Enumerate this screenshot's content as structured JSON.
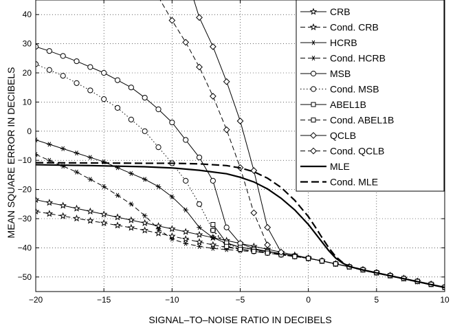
{
  "chart_data": {
    "type": "line",
    "title": "",
    "xlabel": "SIGNAL–TO–NOISE RATIO IN DECIBELS",
    "ylabel": "MEAN SQUARE ERROR IN DECIBELS",
    "xlim": [
      -20,
      10
    ],
    "ylim": [
      -55,
      45
    ],
    "xticks": [
      -20,
      -15,
      -10,
      -5,
      0,
      5,
      10
    ],
    "yticks": [
      -50,
      -40,
      -30,
      -20,
      -10,
      0,
      10,
      20,
      30,
      40
    ],
    "xtick_labels": [
      "−20",
      "−15",
      "−10",
      "−5",
      "0",
      "5",
      "10"
    ],
    "ytick_labels": [
      "−50",
      "−40",
      "−30",
      "−20",
      "−10",
      "0",
      "10",
      "20",
      "30",
      "40"
    ],
    "grid": true,
    "legend_position": "top-right",
    "series": [
      {
        "name": "CRB",
        "color": "#000000",
        "dash": "solid",
        "marker": "star",
        "x": [
          -20,
          -19,
          -18,
          -17,
          -16,
          -15,
          -14,
          -13,
          -12,
          -11,
          -10,
          -9,
          -8,
          -7,
          -6,
          -5,
          -4,
          -3,
          -2,
          -1,
          0,
          1,
          2,
          3,
          4,
          5,
          6,
          7,
          8,
          9,
          10
        ],
        "y": [
          -23.5,
          -24.5,
          -25.5,
          -26.5,
          -27.5,
          -28.5,
          -29.5,
          -30.5,
          -31.5,
          -32.5,
          -33.5,
          -34.5,
          -35.5,
          -36.5,
          -37.5,
          -38.5,
          -39.5,
          -40.5,
          -41.5,
          -42.5,
          -43.5,
          -44.5,
          -45.5,
          -46.5,
          -47.5,
          -48.5,
          -49.5,
          -50.5,
          -51.5,
          -52.5,
          -53.5
        ]
      },
      {
        "name": "Cond. CRB",
        "color": "#000000",
        "dash": "dashed",
        "marker": "star",
        "x": [
          -20,
          -19,
          -18,
          -17,
          -16,
          -15,
          -14,
          -13,
          -12,
          -11,
          -10,
          -9,
          -8,
          -7,
          -6,
          -5,
          -4,
          -3,
          -2,
          -1,
          0,
          1,
          2,
          3,
          4,
          5,
          6,
          7,
          8,
          9,
          10
        ],
        "y": [
          -27.5,
          -28.3,
          -29.1,
          -29.9,
          -30.7,
          -31.5,
          -32.3,
          -33.1,
          -34.0,
          -35.0,
          -36.0,
          -37.0,
          -38.0,
          -39.0,
          -39.8,
          -40.5,
          -41.0,
          -41.6,
          -42.2,
          -42.9,
          -43.6,
          -44.5,
          -45.5,
          -46.5,
          -47.5,
          -48.5,
          -49.5,
          -50.5,
          -51.5,
          -52.5,
          -53.5
        ]
      },
      {
        "name": "HCRB",
        "color": "#000000",
        "dash": "solid",
        "marker": "asterisk",
        "x": [
          -20,
          -19,
          -18,
          -17,
          -16,
          -15,
          -14,
          -13,
          -12,
          -11,
          -10,
          -9,
          -8,
          -7,
          -6,
          -5,
          -4,
          -3,
          -2,
          -1,
          0,
          1,
          2,
          3,
          4,
          5,
          6,
          7,
          8,
          9,
          10
        ],
        "y": [
          -3,
          -4.5,
          -6,
          -7.5,
          -9,
          -10.5,
          -12.5,
          -14.5,
          -16.5,
          -19,
          -22.5,
          -27,
          -33,
          -36.5,
          -38.5,
          -39.8,
          -40.5,
          -41.2,
          -42,
          -42.8,
          -43.6,
          -44.5,
          -45.5,
          -46.5,
          -47.5,
          -48.5,
          -49.5,
          -50.5,
          -51.5,
          -52.5,
          -53.5
        ]
      },
      {
        "name": "Cond. HCRB",
        "color": "#000000",
        "dash": "dashed",
        "marker": "asterisk",
        "x": [
          -20,
          -19,
          -18,
          -17,
          -16,
          -15,
          -14,
          -13,
          -12,
          -11,
          -10,
          -9,
          -8,
          -7,
          -6,
          -5,
          -4,
          -3,
          -2,
          -1,
          0,
          1,
          2,
          3,
          4,
          5,
          6,
          7,
          8,
          9,
          10
        ],
        "y": [
          -8,
          -10,
          -12,
          -14,
          -16.5,
          -19,
          -22,
          -25,
          -29,
          -33.5,
          -37,
          -38.5,
          -39.5,
          -40.2,
          -40.6,
          -41,
          -41.3,
          -41.8,
          -42.4,
          -43,
          -43.6,
          -44.5,
          -45.5,
          -46.5,
          -47.5,
          -48.5,
          -49.5,
          -50.5,
          -51.5,
          -52.5,
          -53.5
        ]
      },
      {
        "name": "MSB",
        "color": "#000000",
        "dash": "solid",
        "marker": "circle",
        "x": [
          -20,
          -19,
          -18,
          -17,
          -16,
          -15,
          -14,
          -13,
          -12,
          -11,
          -10,
          -9,
          -8,
          -7,
          -6,
          -5,
          -4,
          -3,
          -2,
          -1,
          0,
          1,
          2,
          3,
          4,
          5,
          6,
          7,
          8,
          9,
          10
        ],
        "y": [
          29,
          27.5,
          25.8,
          24,
          22,
          20,
          17.5,
          15,
          11.5,
          7.5,
          3,
          -3,
          -9,
          -17,
          -33,
          -38.5,
          -40.3,
          -41.2,
          -42,
          -42.8,
          -43.6,
          -44.5,
          -45.5,
          -46.5,
          -47.5,
          -48.5,
          -49.5,
          -50.5,
          -51.5,
          -52.5,
          -53.5
        ]
      },
      {
        "name": "Cond. MSB",
        "color": "#000000",
        "dash": "dotted",
        "marker": "circle",
        "x": [
          -20,
          -19,
          -18,
          -17,
          -16,
          -15,
          -14,
          -13,
          -12,
          -11,
          -10,
          -9,
          -8,
          -7,
          -6,
          -5,
          -4,
          -3,
          -2,
          -1,
          0,
          1,
          2,
          3,
          4,
          5,
          6,
          7,
          8,
          9,
          10
        ],
        "y": [
          23,
          21,
          19,
          16.5,
          14,
          11,
          8,
          4,
          0,
          -5.5,
          -11,
          -17,
          -25,
          -34,
          -38.5,
          -40.5,
          -41.2,
          -41.8,
          -42.4,
          -43,
          -43.6,
          -44.5,
          -45.5,
          -46.5,
          -47.5,
          -48.5,
          -49.5,
          -50.5,
          -51.5,
          -52.5,
          -53.5
        ]
      },
      {
        "name": "ABEL1B",
        "color": "#000000",
        "dash": "solid",
        "marker": "square",
        "x": [
          -7,
          -6,
          -5,
          -4,
          -3,
          -2,
          -1,
          0,
          1,
          2,
          3,
          4,
          5,
          6,
          7,
          8,
          9,
          10
        ],
        "y": [
          -32,
          -38.3,
          -39.8,
          -40.6,
          -41.3,
          -42,
          -42.8,
          -43.6,
          -44.5,
          -45.5,
          -46.5,
          -47.5,
          -48.5,
          -49.5,
          -50.5,
          -51.5,
          -52.5,
          -53.5
        ]
      },
      {
        "name": "Cond. ABEL1B",
        "color": "#000000",
        "dash": "dashed",
        "marker": "square",
        "x": [
          -7,
          -6,
          -5,
          -4,
          -3,
          -2,
          -1,
          0,
          1,
          2,
          3,
          4,
          5,
          6,
          7,
          8,
          9,
          10
        ],
        "y": [
          -34,
          -39.5,
          -40.5,
          -41.2,
          -41.8,
          -42.4,
          -43,
          -43.6,
          -44.5,
          -45.5,
          -46.5,
          -47.5,
          -48.5,
          -49.5,
          -50.5,
          -51.5,
          -52.5,
          -53.5
        ]
      },
      {
        "name": "QCLB",
        "color": "#000000",
        "dash": "solid",
        "marker": "diamond",
        "x": [
          -9,
          -8,
          -7,
          -6,
          -5,
          -4,
          -3,
          -2
        ],
        "y": [
          54,
          39,
          29,
          17,
          3.5,
          -13.5,
          -33,
          -41.5
        ]
      },
      {
        "name": "Cond. QCLB",
        "color": "#000000",
        "dash": "dashed",
        "marker": "diamond",
        "x": [
          -11,
          -10,
          -9,
          -8,
          -7,
          -6,
          -5,
          -4,
          -3
        ],
        "y": [
          46,
          38,
          30.5,
          22,
          12,
          0.5,
          -12.5,
          -28,
          -39
        ]
      },
      {
        "name": "MLE",
        "color": "#000000",
        "dash": "solid",
        "marker": "none",
        "width": 2.2,
        "x": [
          -20,
          -16,
          -12,
          -10,
          -8,
          -6,
          -5,
          -4,
          -3,
          -2,
          -1,
          0,
          0.5,
          1,
          1.5,
          2,
          2.5,
          3,
          4,
          5,
          6,
          7,
          8,
          9,
          10
        ],
        "y": [
          -11.5,
          -11.8,
          -12.2,
          -12.6,
          -13.4,
          -14.6,
          -15.8,
          -17.4,
          -19.8,
          -23,
          -27,
          -32,
          -35,
          -38,
          -41,
          -43.5,
          -45.2,
          -46.4,
          -47.6,
          -48.6,
          -49.6,
          -50.6,
          -51.6,
          -52.6,
          -53.6
        ]
      },
      {
        "name": "Cond. MLE",
        "color": "#000000",
        "dash": "longdash",
        "marker": "none",
        "width": 2.2,
        "x": [
          -20,
          -16,
          -12,
          -10,
          -8,
          -6,
          -5,
          -4,
          -3,
          -2,
          -1,
          0,
          0.5,
          1,
          1.5,
          2,
          2.5,
          3,
          4,
          5,
          6,
          7,
          8,
          9,
          10
        ],
        "y": [
          -10.8,
          -10.9,
          -11.0,
          -11.0,
          -11.2,
          -11.8,
          -12.6,
          -13.9,
          -16.1,
          -19.3,
          -23.7,
          -29.3,
          -32.8,
          -36.5,
          -40.0,
          -43.0,
          -45.0,
          -46.4,
          -47.6,
          -48.6,
          -49.6,
          -50.6,
          -51.6,
          -52.6,
          -53.6
        ]
      }
    ]
  }
}
